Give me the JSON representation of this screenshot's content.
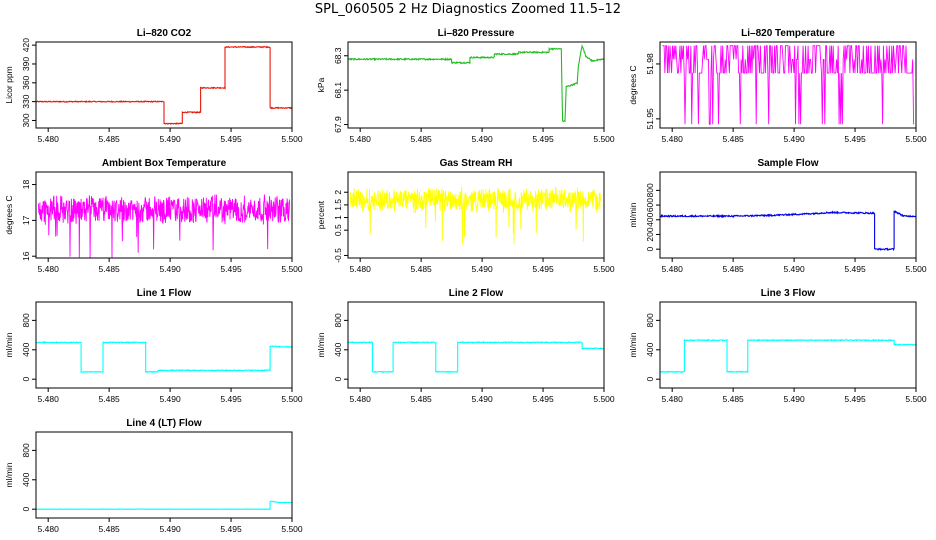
{
  "figure": {
    "title": "SPL_060505  2 Hz Diagnostics Zoomed 11.5–12"
  },
  "chart_data": [
    {
      "type": "line",
      "title": "Li–820 CO2",
      "ylabel": "Licor ppm",
      "color": "#e8190c",
      "xlim": [
        5.479,
        5.5
      ],
      "ylim": [
        288,
        425
      ],
      "yticks": [
        300,
        330,
        360,
        390,
        420
      ],
      "xticks": [
        "5.480",
        "5.485",
        "5.490",
        "5.495",
        "5.500"
      ],
      "x": [
        5.479,
        5.4895,
        5.4895,
        5.491,
        5.491,
        5.4925,
        5.4925,
        5.4945,
        5.4945,
        5.4982,
        5.4982,
        5.5
      ],
      "values": [
        330,
        330,
        295,
        295,
        313,
        313,
        352,
        352,
        417,
        417,
        320,
        320
      ],
      "noise": 0.8
    },
    {
      "type": "line",
      "title": "Li–820 Pressure",
      "ylabel": "kPa",
      "color": "#22bb22",
      "xlim": [
        5.479,
        5.5
      ],
      "ylim": [
        67.88,
        68.38
      ],
      "yticks": [
        67.9,
        68.1,
        68.3
      ],
      "xticks": [
        "5.480",
        "5.485",
        "5.490",
        "5.495",
        "5.500"
      ],
      "x": [
        5.479,
        5.4875,
        5.4875,
        5.489,
        5.489,
        5.491,
        5.491,
        5.493,
        5.493,
        5.4955,
        5.4955,
        5.4965,
        5.4966,
        5.4968,
        5.4969,
        5.4978,
        5.4979,
        5.4982,
        5.4985,
        5.499,
        5.5
      ],
      "values": [
        68.28,
        68.28,
        68.26,
        68.26,
        68.29,
        68.29,
        68.31,
        68.31,
        68.32,
        68.32,
        68.34,
        68.34,
        67.92,
        67.92,
        68.12,
        68.14,
        68.24,
        68.36,
        68.3,
        68.27,
        68.28
      ],
      "noise": 0.004
    },
    {
      "type": "line",
      "title": "Li–820 Temperature",
      "ylabel": "degrees C",
      "color": "#ff00ff",
      "xlim": [
        5.479,
        5.5
      ],
      "ylim": [
        51.945,
        51.992
      ],
      "yticks": [
        51.95,
        51.98
      ],
      "xticks": [
        "5.480",
        "5.485",
        "5.490",
        "5.495",
        "5.500"
      ],
      "style": "toggle",
      "low": 51.975,
      "high": 51.99,
      "dip": 51.947
    },
    {
      "type": "line",
      "title": "Ambient Box Temperature",
      "ylabel": "degrees C",
      "color": "#ff00ff",
      "xlim": [
        5.479,
        5.5
      ],
      "ylim": [
        15.95,
        18.35
      ],
      "yticks": [
        16.0,
        17.0,
        18.0
      ],
      "xticks": [
        "5.480",
        "5.485",
        "5.490",
        "5.495",
        "5.500"
      ],
      "style": "noise",
      "mean": 17.3,
      "amp": 0.45
    },
    {
      "type": "line",
      "title": "Gas Stream RH",
      "ylabel": "percent",
      "color": "#ffff00",
      "xlim": [
        5.479,
        5.5
      ],
      "ylim": [
        -0.6,
        2.8
      ],
      "yticks": [
        -0.5,
        0.5,
        1.0,
        1.5,
        2.0
      ],
      "xticks": [
        "5.480",
        "5.485",
        "5.490",
        "5.495",
        "5.500"
      ],
      "style": "noise",
      "mean": 1.7,
      "amp": 0.55
    },
    {
      "type": "line",
      "title": "Sample Flow",
      "ylabel": "ml/min",
      "color": "#0000ee",
      "xlim": [
        5.479,
        5.5
      ],
      "ylim": [
        -120,
        1050
      ],
      "yticks": [
        0,
        200,
        400,
        600,
        800
      ],
      "xticks": [
        "5.480",
        "5.485",
        "5.490",
        "5.495",
        "5.500"
      ],
      "x": [
        5.479,
        5.485,
        5.488,
        5.491,
        5.493,
        5.4966,
        5.4966,
        5.4982,
        5.4982,
        5.499,
        5.5
      ],
      "values": [
        450,
        450,
        460,
        480,
        500,
        490,
        0,
        0,
        520,
        450,
        450
      ],
      "noise": 10
    },
    {
      "type": "line",
      "title": "Line 1 Flow",
      "ylabel": "ml/min",
      "color": "#00ffff",
      "xlim": [
        5.479,
        5.5
      ],
      "ylim": [
        -120,
        1050
      ],
      "yticks": [
        0,
        400,
        800
      ],
      "xticks": [
        "5.480",
        "5.485",
        "5.490",
        "5.495",
        "5.500"
      ],
      "x": [
        5.479,
        5.4827,
        5.4827,
        5.4845,
        5.4845,
        5.488,
        5.488,
        5.489,
        5.489,
        5.4982,
        5.4982,
        5.499,
        5.5
      ],
      "values": [
        500,
        500,
        100,
        100,
        500,
        500,
        100,
        100,
        120,
        120,
        450,
        440,
        440
      ],
      "noise": 6
    },
    {
      "type": "line",
      "title": "Line 2 Flow",
      "ylabel": "ml/min",
      "color": "#00ffff",
      "xlim": [
        5.479,
        5.5
      ],
      "ylim": [
        -120,
        1050
      ],
      "yticks": [
        0,
        400,
        800
      ],
      "xticks": [
        "5.480",
        "5.485",
        "5.490",
        "5.495",
        "5.500"
      ],
      "x": [
        5.479,
        5.481,
        5.481,
        5.4827,
        5.4827,
        5.4862,
        5.4862,
        5.488,
        5.488,
        5.4982,
        5.4982,
        5.5
      ],
      "values": [
        500,
        500,
        100,
        100,
        500,
        500,
        100,
        100,
        500,
        500,
        420,
        420
      ],
      "noise": 6
    },
    {
      "type": "line",
      "title": "Line 3 Flow",
      "ylabel": "ml/min",
      "color": "#00ffff",
      "xlim": [
        5.479,
        5.5
      ],
      "ylim": [
        -120,
        1050
      ],
      "yticks": [
        0,
        400,
        800
      ],
      "xticks": [
        "5.480",
        "5.485",
        "5.490",
        "5.495",
        "5.500"
      ],
      "x": [
        5.479,
        5.481,
        5.481,
        5.4845,
        5.4845,
        5.4862,
        5.4862,
        5.4982,
        5.4982,
        5.5
      ],
      "values": [
        100,
        100,
        530,
        530,
        100,
        100,
        530,
        530,
        470,
        470
      ],
      "noise": 6
    },
    {
      "type": "line",
      "title": "Line 4 (LT) Flow",
      "ylabel": "ml/min",
      "color": "#00ffff",
      "xlim": [
        5.479,
        5.5
      ],
      "ylim": [
        -120,
        1050
      ],
      "yticks": [
        0,
        400,
        800
      ],
      "xticks": [
        "5.480",
        "5.485",
        "5.490",
        "5.495",
        "5.500"
      ],
      "x": [
        5.479,
        5.4982,
        5.4982,
        5.499,
        5.5
      ],
      "values": [
        0,
        0,
        110,
        90,
        90
      ],
      "noise": 2
    }
  ]
}
